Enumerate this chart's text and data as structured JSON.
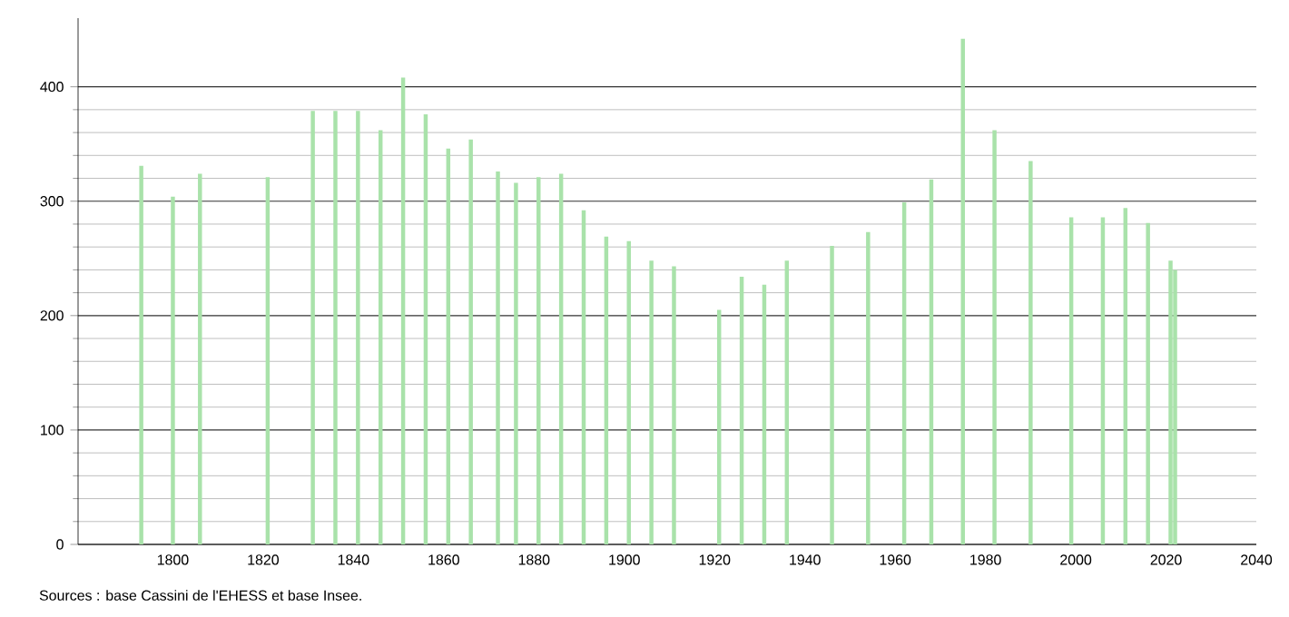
{
  "chart_data": {
    "type": "bar",
    "color": "#a9e2aa",
    "x": [
      1793,
      1800,
      1806,
      1821,
      1831,
      1836,
      1841,
      1846,
      1851,
      1856,
      1861,
      1866,
      1872,
      1876,
      1881,
      1886,
      1891,
      1896,
      1901,
      1906,
      1911,
      1921,
      1926,
      1931,
      1936,
      1946,
      1954,
      1962,
      1968,
      1975,
      1982,
      1990,
      1999,
      2006,
      2011,
      2016,
      2021,
      2022
    ],
    "values": [
      331,
      304,
      324,
      321,
      379,
      379,
      379,
      362,
      408,
      376,
      346,
      354,
      326,
      316,
      321,
      324,
      292,
      269,
      265,
      248,
      243,
      205,
      234,
      227,
      248,
      261,
      273,
      299,
      319,
      442,
      362,
      335,
      286,
      286,
      294,
      281,
      248,
      240
    ],
    "xlim": [
      1779,
      2040
    ],
    "xticks": [
      1800,
      1820,
      1840,
      1860,
      1880,
      1900,
      1920,
      1940,
      1960,
      1980,
      2000,
      2020,
      2040
    ],
    "ylim": [
      0,
      460
    ],
    "yticks": [
      0,
      100,
      200,
      300,
      400
    ],
    "grid": "y",
    "annotations": [
      "Sources : base Cassini de l'EHESS et base Insee."
    ]
  }
}
